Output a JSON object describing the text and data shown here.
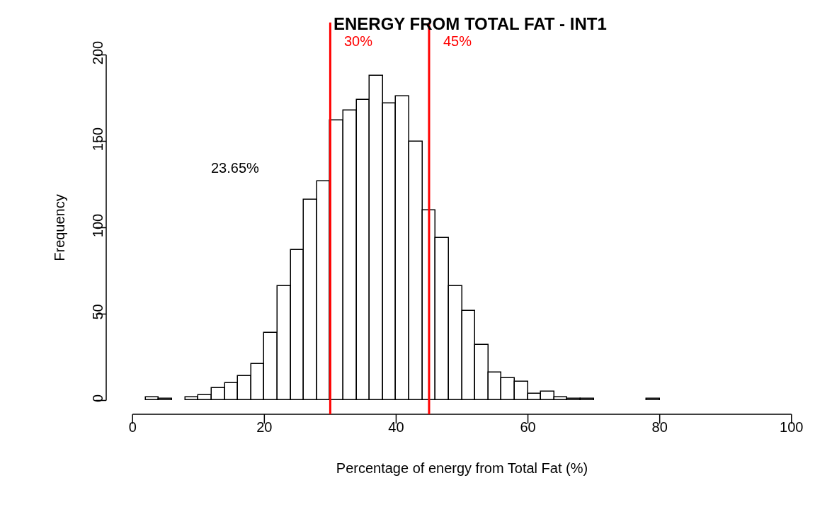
{
  "chart_data": {
    "type": "histogram",
    "title": "ENERGY FROM TOTAL FAT - INT1",
    "xlabel": "Percentage of energy from Total Fat (%)",
    "ylabel": "Frequency",
    "bins": [
      2,
      4,
      6,
      8,
      10,
      12,
      14,
      16,
      18,
      20,
      22,
      24,
      26,
      28,
      30,
      32,
      34,
      36,
      38,
      40,
      42,
      44,
      46,
      48,
      50,
      52,
      54,
      56,
      58,
      60,
      62,
      64,
      66,
      68,
      70,
      72,
      74,
      76,
      78,
      80
    ],
    "values": [
      2,
      1,
      0,
      2,
      3,
      7,
      10,
      14,
      21,
      39,
      66,
      87,
      116,
      127,
      162,
      168,
      174,
      188,
      172,
      176,
      150,
      110,
      94,
      66,
      52,
      32,
      16,
      13,
      11,
      4,
      5,
      2,
      1,
      1,
      0,
      0,
      0,
      0,
      1
    ],
    "color": "#ffffff",
    "xlim": [
      0,
      100
    ],
    "ylim": [
      0,
      200
    ],
    "xticks": [
      0,
      20,
      40,
      60,
      80,
      100
    ],
    "yticks": [
      0,
      50,
      100,
      150,
      200
    ],
    "ref_lines": [
      {
        "axis": "x",
        "value": 30,
        "label": "30%",
        "color": "#ff0000"
      },
      {
        "axis": "x",
        "value": 45,
        "label": "45%",
        "color": "#ff0000"
      }
    ],
    "annotations": [
      "23.65%"
    ]
  }
}
